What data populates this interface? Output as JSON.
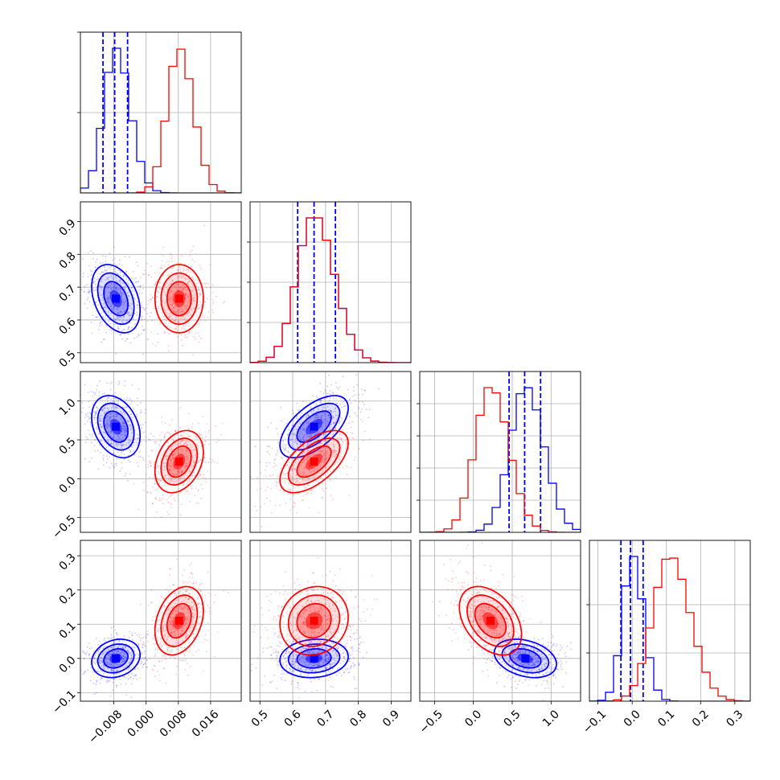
{
  "chart_data": {
    "type": "corner",
    "colors": {
      "blue": "#0000ff",
      "red": "#ff0000",
      "grid": "#b0b0b0"
    },
    "variables": [
      {
        "range": [
          -0.0163,
          0.0236
        ],
        "ticks": [
          -0.008,
          0.0,
          0.008,
          0.016
        ],
        "tick_labels": [
          "−0.008",
          "0.000",
          "0.008",
          "0.016"
        ]
      },
      {
        "range": [
          0.47,
          0.96
        ],
        "ticks": [
          0.5,
          0.6,
          0.7,
          0.8,
          0.9
        ],
        "tick_labels": [
          "0.5",
          "0.6",
          "0.7",
          "0.8",
          "0.9"
        ]
      },
      {
        "range": [
          -0.69,
          1.38
        ],
        "ticks": [
          -0.5,
          0.0,
          0.5,
          1.0
        ],
        "tick_labels": [
          "−0.5",
          "0.0",
          "0.5",
          "1.0"
        ]
      },
      {
        "range": [
          -0.125,
          0.345
        ],
        "ticks": [
          -0.1,
          0.0,
          0.1,
          0.2,
          0.3
        ],
        "tick_labels": [
          "−0.1",
          "0.0",
          "0.1",
          "0.2",
          "0.3"
        ]
      }
    ],
    "series": [
      {
        "color": "blue",
        "mean": [
          -0.0075,
          0.665,
          0.67,
          0.0
        ],
        "sd": [
          0.003,
          0.052,
          0.2,
          0.028
        ],
        "quantiles": [
          [
            -0.0107,
            -0.0078,
            -0.0046
          ],
          [
            0.615,
            0.665,
            0.73
          ],
          [
            0.46,
            0.66,
            0.865
          ],
          [
            -0.033,
            -0.005,
            0.032
          ]
        ]
      },
      {
        "color": "red",
        "mean": [
          0.0082,
          0.665,
          0.22,
          0.11
        ],
        "sd": [
          0.003,
          0.052,
          0.2,
          0.05
        ],
        "quantiles": []
      }
    ],
    "correlations": [
      {
        "pair": [
          0,
          1
        ],
        "blue": -0.35,
        "red": 0.0
      },
      {
        "pair": [
          0,
          2
        ],
        "blue": -0.3,
        "red": 0.3
      },
      {
        "pair": [
          0,
          3
        ],
        "blue": 0.2,
        "red": 0.3
      },
      {
        "pair": [
          1,
          2
        ],
        "blue": 0.6,
        "red": 0.6
      },
      {
        "pair": [
          1,
          3
        ],
        "blue": 0.1,
        "red": 0.1
      },
      {
        "pair": [
          2,
          3
        ],
        "blue": -0.3,
        "red": -0.4
      }
    ],
    "diag_y_ticks": [
      [
        0.5,
        1.0
      ],
      [
        0.25,
        0.5,
        0.75
      ],
      [
        0.2,
        0.4,
        0.6,
        0.8
      ],
      [
        0.3,
        0.6
      ]
    ],
    "grid": true
  }
}
